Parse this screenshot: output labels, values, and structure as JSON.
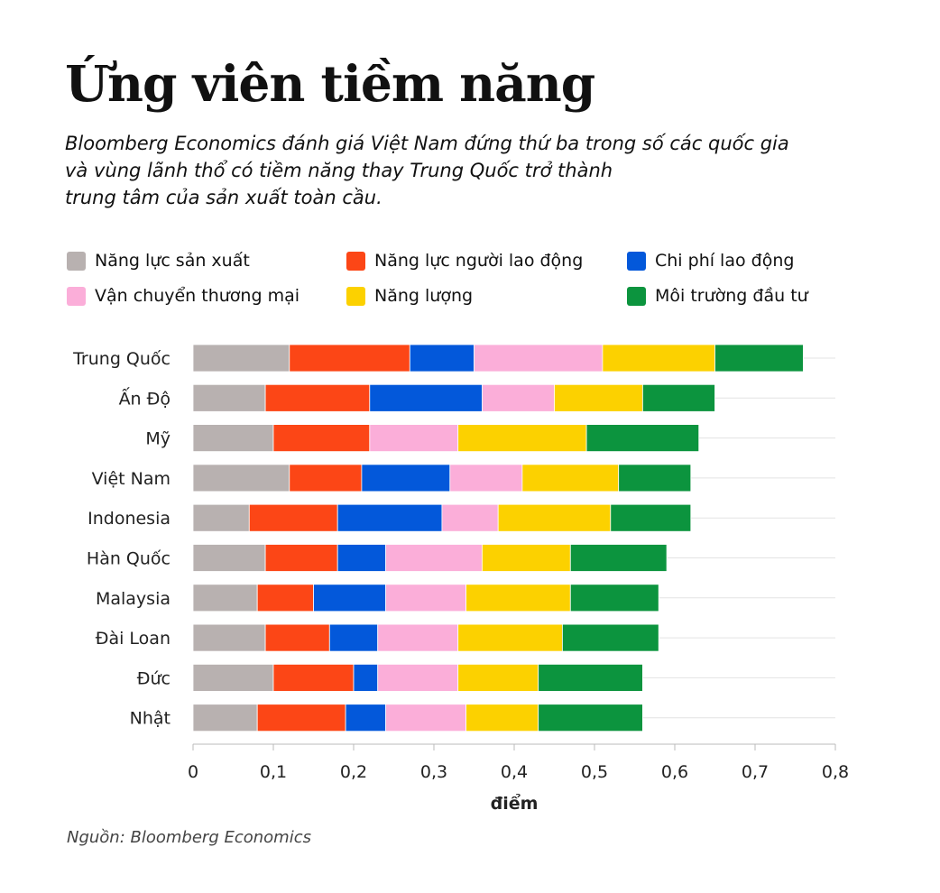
{
  "chart_data": {
    "type": "bar",
    "orientation": "horizontal",
    "stacked": true,
    "title": "Ứng viên tiềm năng",
    "subtitle": "Bloomberg Economics đánh giá Việt Nam đứng thứ ba trong số các quốc gia\nvà vùng lãnh thổ có tiềm năng thay Trung Quốc trở thành\ntrung tâm của sản xuất toàn cầu.",
    "xlabel": "điểm",
    "ylabel": "",
    "xlim": [
      0,
      0.8
    ],
    "xticks": [
      "0",
      "0,1",
      "0,2",
      "0,3",
      "0,4",
      "0,5",
      "0,6",
      "0,7",
      "0,8"
    ],
    "grid": "horizontal",
    "legend_position": "top",
    "categories": [
      "Trung Quốc",
      "Ấn Độ",
      "Mỹ",
      "Việt Nam",
      "Indonesia",
      "Hàn Quốc",
      "Malaysia",
      "Đài Loan",
      "Đức",
      "Nhật"
    ],
    "series": [
      {
        "name": "Năng lực sản xuất",
        "color": "#b8b1b0",
        "values": [
          0.12,
          0.09,
          0.1,
          0.12,
          0.07,
          0.09,
          0.08,
          0.09,
          0.1,
          0.08
        ]
      },
      {
        "name": "Năng lực người lao động",
        "color": "#fc4616",
        "values": [
          0.15,
          0.13,
          0.12,
          0.09,
          0.11,
          0.09,
          0.07,
          0.08,
          0.1,
          0.11
        ]
      },
      {
        "name": "Chi phí lao động",
        "color": "#0358da",
        "values": [
          0.08,
          0.14,
          0.0,
          0.11,
          0.13,
          0.06,
          0.09,
          0.06,
          0.03,
          0.05
        ]
      },
      {
        "name": "Vận chuyển thương mại",
        "color": "#fbaed9",
        "values": [
          0.16,
          0.09,
          0.11,
          0.09,
          0.07,
          0.12,
          0.1,
          0.1,
          0.1,
          0.1
        ]
      },
      {
        "name": "Năng lượng",
        "color": "#fcd100",
        "values": [
          0.14,
          0.11,
          0.16,
          0.12,
          0.14,
          0.11,
          0.13,
          0.13,
          0.1,
          0.09
        ]
      },
      {
        "name": "Môi trường đầu tư",
        "color": "#0c943e",
        "values": [
          0.11,
          0.09,
          0.14,
          0.09,
          0.1,
          0.12,
          0.11,
          0.12,
          0.13,
          0.13
        ]
      }
    ],
    "source": "Nguồn: Bloomberg Economics"
  }
}
